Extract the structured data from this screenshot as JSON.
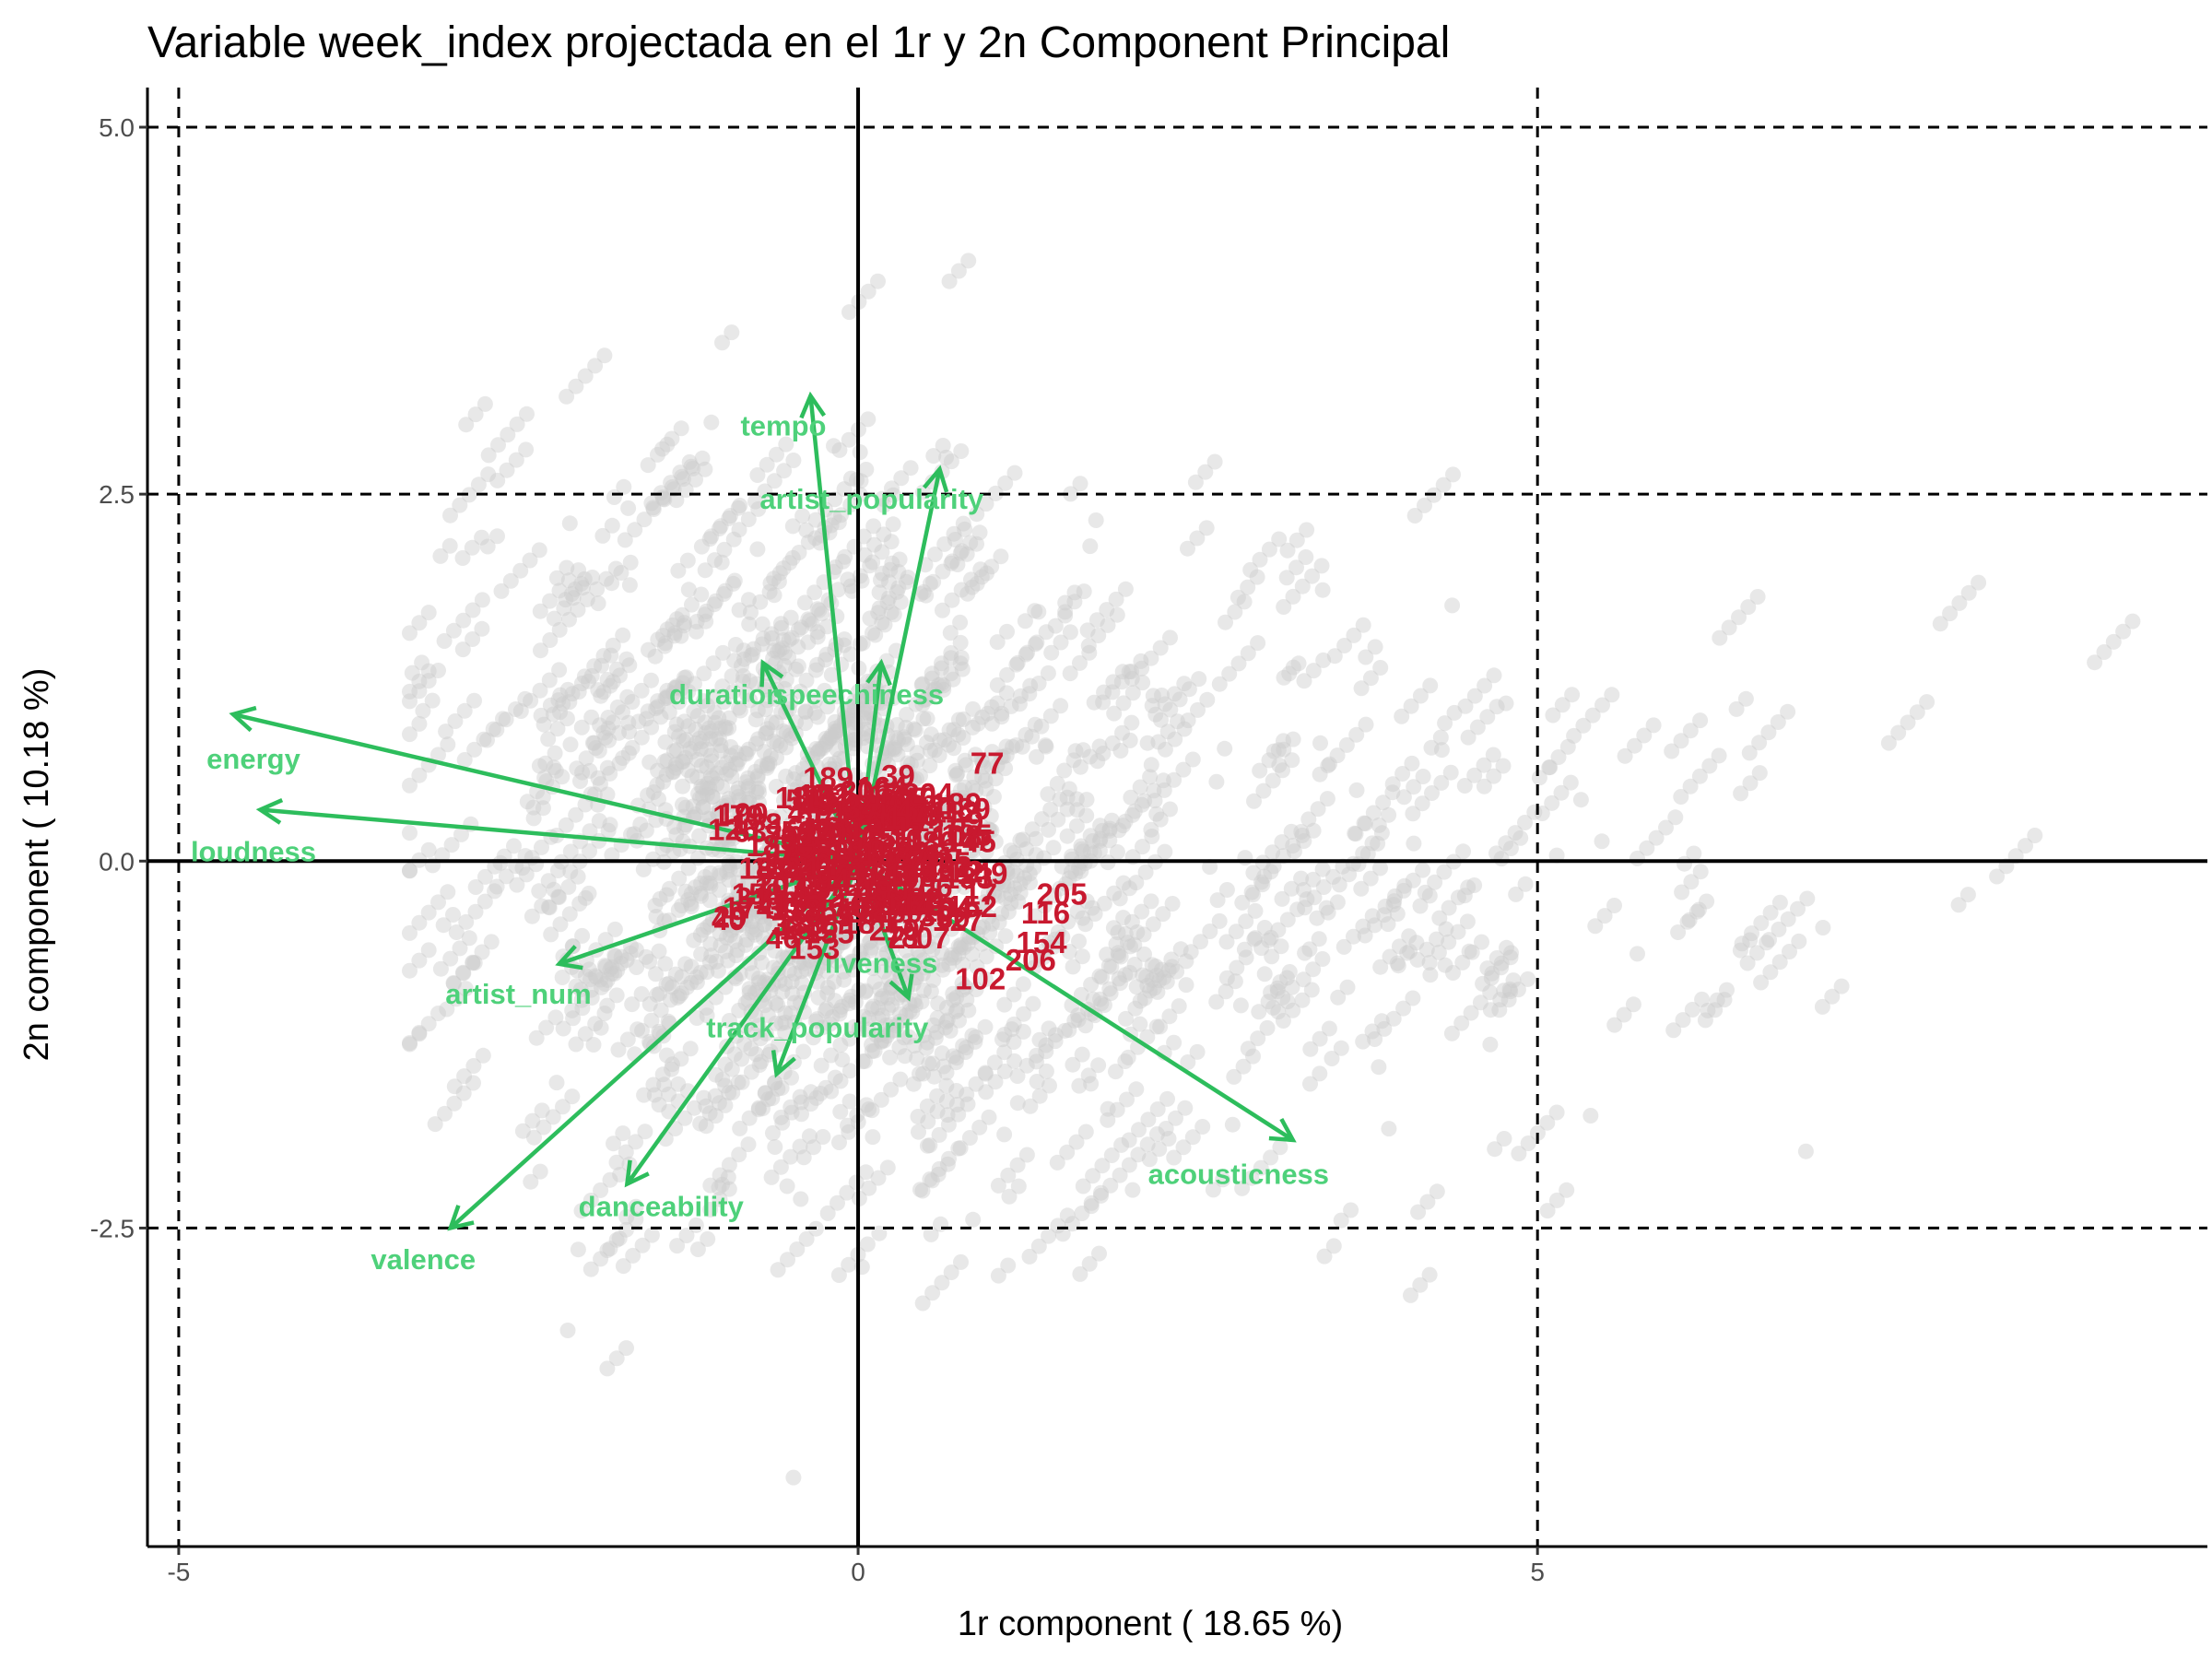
{
  "chart_data": {
    "type": "scatter",
    "title": "Variable week_index projectada en el 1r y 2n Component Principal",
    "xlabel": "1r component ( 18.65 %)",
    "ylabel": "2n component ( 10.18 %)",
    "xlim": [
      -5.23,
      9.93
    ],
    "ylim": [
      -4.67,
      5.27
    ],
    "x_ticks": [
      -5,
      0,
      5
    ],
    "x_tick_labels": [
      "-5",
      "0",
      "5"
    ],
    "y_ticks": [
      -2.5,
      0,
      2.5,
      5
    ],
    "y_tick_labels": [
      "-2.5",
      "0.0",
      "2.5",
      "5.0"
    ],
    "reference_lines": {
      "vertical_dashed": [
        -5,
        5
      ],
      "horizontal_dashed": [
        -2.5,
        2.5,
        5
      ],
      "solid_axes": [
        0
      ]
    },
    "grid": false,
    "colors": {
      "points": "#cccccc",
      "arrows": "#2dbd5c",
      "arrow_labels": "#4ed17a",
      "centroids": "#c8192f"
    },
    "variables": [
      {
        "name": "energy",
        "x": -4.6,
        "y": 1.0,
        "label_x": -4.45,
        "label_y": 0.63
      },
      {
        "name": "loudness",
        "x": -4.4,
        "y": 0.35,
        "label_x": -4.45,
        "label_y": 0.0
      },
      {
        "name": "artist_num",
        "x": -2.2,
        "y": -0.7,
        "label_x": -2.5,
        "label_y": -0.97
      },
      {
        "name": "valence",
        "x": -3.0,
        "y": -2.5,
        "label_x": -3.2,
        "label_y": -2.78
      },
      {
        "name": "danceability",
        "x": -1.7,
        "y": -2.2,
        "label_x": -1.45,
        "label_y": -2.42
      },
      {
        "name": "track_popularity",
        "x": -0.6,
        "y": -1.45,
        "label_x": -0.3,
        "label_y": -1.2
      },
      {
        "name": "liveness",
        "x": 0.37,
        "y": -0.93,
        "label_x": 0.17,
        "label_y": -0.76
      },
      {
        "name": "acousticness",
        "x": 3.2,
        "y": -1.9,
        "label_x": 2.8,
        "label_y": -2.2
      },
      {
        "name": "duration",
        "x": -0.7,
        "y": 1.35,
        "label_x": -0.97,
        "label_y": 1.07
      },
      {
        "name": "speechiness",
        "x": 0.17,
        "y": 1.35,
        "label_x": 0.0,
        "label_y": 1.07
      },
      {
        "name": "tempo",
        "x": -0.35,
        "y": 3.17,
        "label_x": -0.55,
        "label_y": 2.9
      },
      {
        "name": "artist_popularity",
        "x": 0.6,
        "y": 2.67,
        "label_x": 0.1,
        "label_y": 2.4
      }
    ],
    "centroid_labels": [
      {
        "label": "77",
        "x": 0.95,
        "y": 0.67
      },
      {
        "label": "185",
        "x": 0.8,
        "y": 0.18
      },
      {
        "label": "205",
        "x": 1.5,
        "y": -0.22
      },
      {
        "label": "116",
        "x": 1.38,
        "y": -0.35
      },
      {
        "label": "154",
        "x": 1.35,
        "y": -0.55
      },
      {
        "label": "206",
        "x": 1.27,
        "y": -0.67
      },
      {
        "label": "102",
        "x": 0.9,
        "y": -0.8
      },
      {
        "label": "189",
        "x": -0.22,
        "y": 0.57
      },
      {
        "label": "17",
        "x": 0.2,
        "y": 0.45
      },
      {
        "label": "47",
        "x": 0.4,
        "y": 0.35
      },
      {
        "label": "10",
        "x": 0.35,
        "y": 0.15
      },
      {
        "label": "52",
        "x": -0.45,
        "y": 0.15
      },
      {
        "label": "31",
        "x": -0.78,
        "y": -0.25
      },
      {
        "label": "19",
        "x": -0.6,
        "y": -0.05
      },
      {
        "label": "13",
        "x": -0.2,
        "y": -0.35
      },
      {
        "label": "18",
        "x": 0.0,
        "y": -0.42
      },
      {
        "label": "21",
        "x": 0.35,
        "y": -0.52
      },
      {
        "label": "07",
        "x": 0.55,
        "y": -0.52
      },
      {
        "label": "30",
        "x": 0.7,
        "y": -0.38
      },
      {
        "label": "17",
        "x": 0.9,
        "y": -0.22
      },
      {
        "label": "12",
        "x": 0.78,
        "y": -0.07
      },
      {
        "label": "6",
        "x": 0.12,
        "y": 0.27
      }
    ]
  }
}
